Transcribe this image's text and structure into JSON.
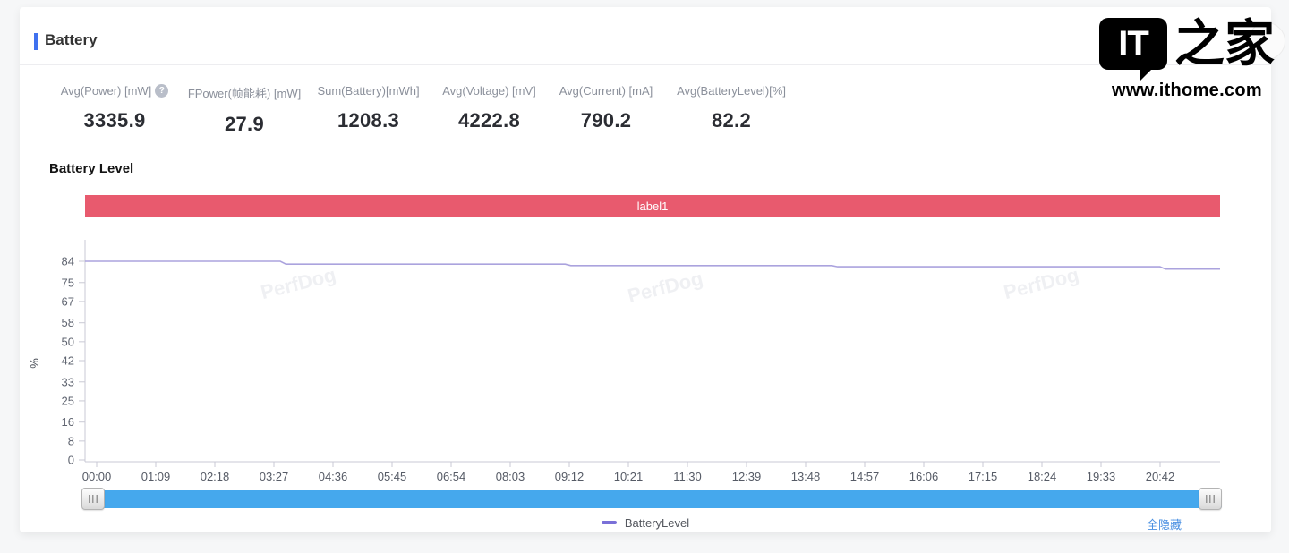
{
  "header": {
    "title": "Battery",
    "accent_color": "#3f71ef"
  },
  "logo": {
    "it": "IT",
    "zhijia": "之家",
    "url": "www.ithome.com"
  },
  "stats": {
    "help_icon": "?",
    "items": [
      {
        "label": "Avg(Power) [mW]",
        "value": "3335.9"
      },
      {
        "label": "FPower(帧能耗) [mW]",
        "value": "27.9"
      },
      {
        "label": "Sum(Battery)[mWh]",
        "value": "1208.3"
      },
      {
        "label": "Avg(Voltage) [mV]",
        "value": "4222.8"
      },
      {
        "label": "Avg(Current) [mA]",
        "value": "790.2"
      },
      {
        "label": "Avg(BatteryLevel)[%]",
        "value": "82.2"
      }
    ]
  },
  "section": {
    "title": "Battery Level"
  },
  "label_bar": {
    "text": "label1",
    "color": "#e85a6e"
  },
  "chart_data": {
    "type": "line",
    "title": "Battery Level",
    "ylabel": "%",
    "ylim": [
      0,
      84
    ],
    "y_ticks": [
      84,
      75,
      67,
      58,
      50,
      42,
      33,
      25,
      16,
      8,
      0
    ],
    "x_ticks": [
      "00:00",
      "01:09",
      "02:18",
      "03:27",
      "04:36",
      "05:45",
      "06:54",
      "08:03",
      "09:12",
      "10:21",
      "11:30",
      "12:39",
      "13:48",
      "14:57",
      "16:06",
      "17:15",
      "18:24",
      "19:33",
      "20:42"
    ],
    "grid": false,
    "legend_position": "bottom",
    "watermark": "PerfDog",
    "axis_color": "#c9c9d4",
    "series": [
      {
        "name": "BatteryLevel",
        "color": "#aba3de",
        "points": [
          [
            0,
            84
          ],
          [
            0.172,
            84
          ],
          [
            0.177,
            82.8
          ],
          [
            0.423,
            82.8
          ],
          [
            0.428,
            82.2
          ],
          [
            0.658,
            82.2
          ],
          [
            0.663,
            81.7
          ],
          [
            0.947,
            81.7
          ],
          [
            0.952,
            80.7
          ],
          [
            1,
            80.7
          ]
        ]
      }
    ]
  },
  "scrollbar": {
    "color": "#45a8ed"
  },
  "footer": {
    "legend_label": "BatteryLevel",
    "legend_color": "#7a70d8",
    "hide_all_label": "全隐藏",
    "hide_all_color": "#4a90e2"
  }
}
